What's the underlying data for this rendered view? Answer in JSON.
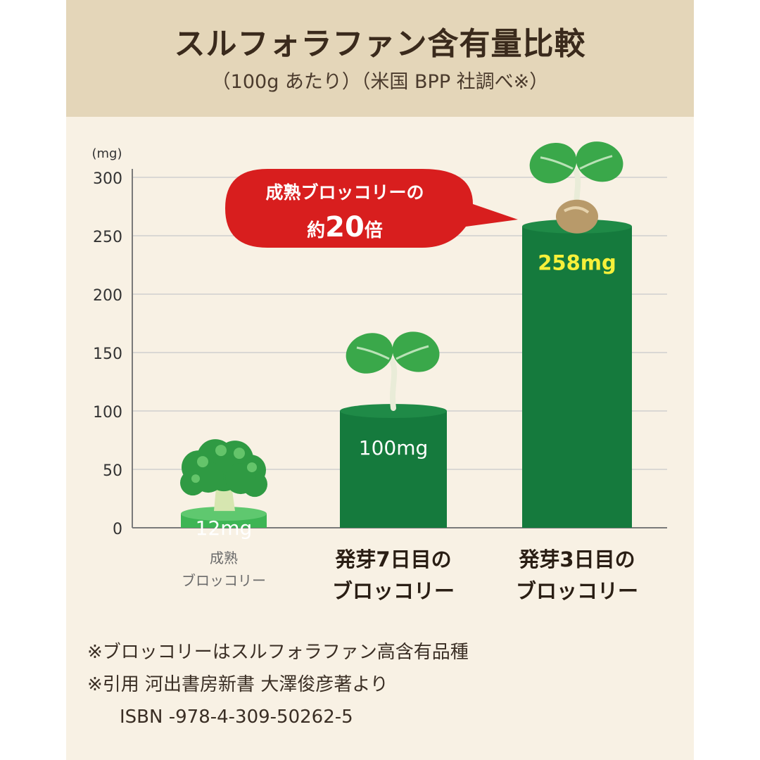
{
  "title": "スルフォラファン含有量比較",
  "subtitle": "（100g あたり）（米国 BPP 社調べ※）",
  "chart_data": {
    "type": "bar",
    "ylabel": "(mg)",
    "ylim": [
      0,
      300
    ],
    "yticks": [
      0,
      50,
      100,
      150,
      200,
      250,
      300
    ],
    "categories": [
      {
        "line1": "成熟",
        "line2": "ブロッコリー"
      },
      {
        "line1": "発芽7日目の",
        "line2": "ブロッコリー"
      },
      {
        "line1": "発芽3日目の",
        "line2": "ブロッコリー"
      }
    ],
    "values": [
      12,
      100,
      258
    ],
    "value_labels": [
      "12mg",
      "100mg",
      "258mg"
    ],
    "callout": {
      "line1": "成熟ブロッコリーの",
      "prefix": "約",
      "number": "20",
      "suffix": "倍"
    },
    "colors": {
      "bar_light": "#3db554",
      "bar_dark": "#157a3d",
      "bar_dark_top": "#1f8a47",
      "callout": "#d81e1e",
      "highlight_label": "#f6f03a",
      "grid": "#cfcfcf"
    },
    "icons": [
      "broccoli-icon",
      "sprout-icon",
      "seed-sprout-icon"
    ]
  },
  "notes": [
    "※ブロッコリーはスルフォラファン高含有品種",
    "※引用 河出書房新書 大澤俊彦著より",
    "ISBN -978-4-309-50262-5"
  ]
}
